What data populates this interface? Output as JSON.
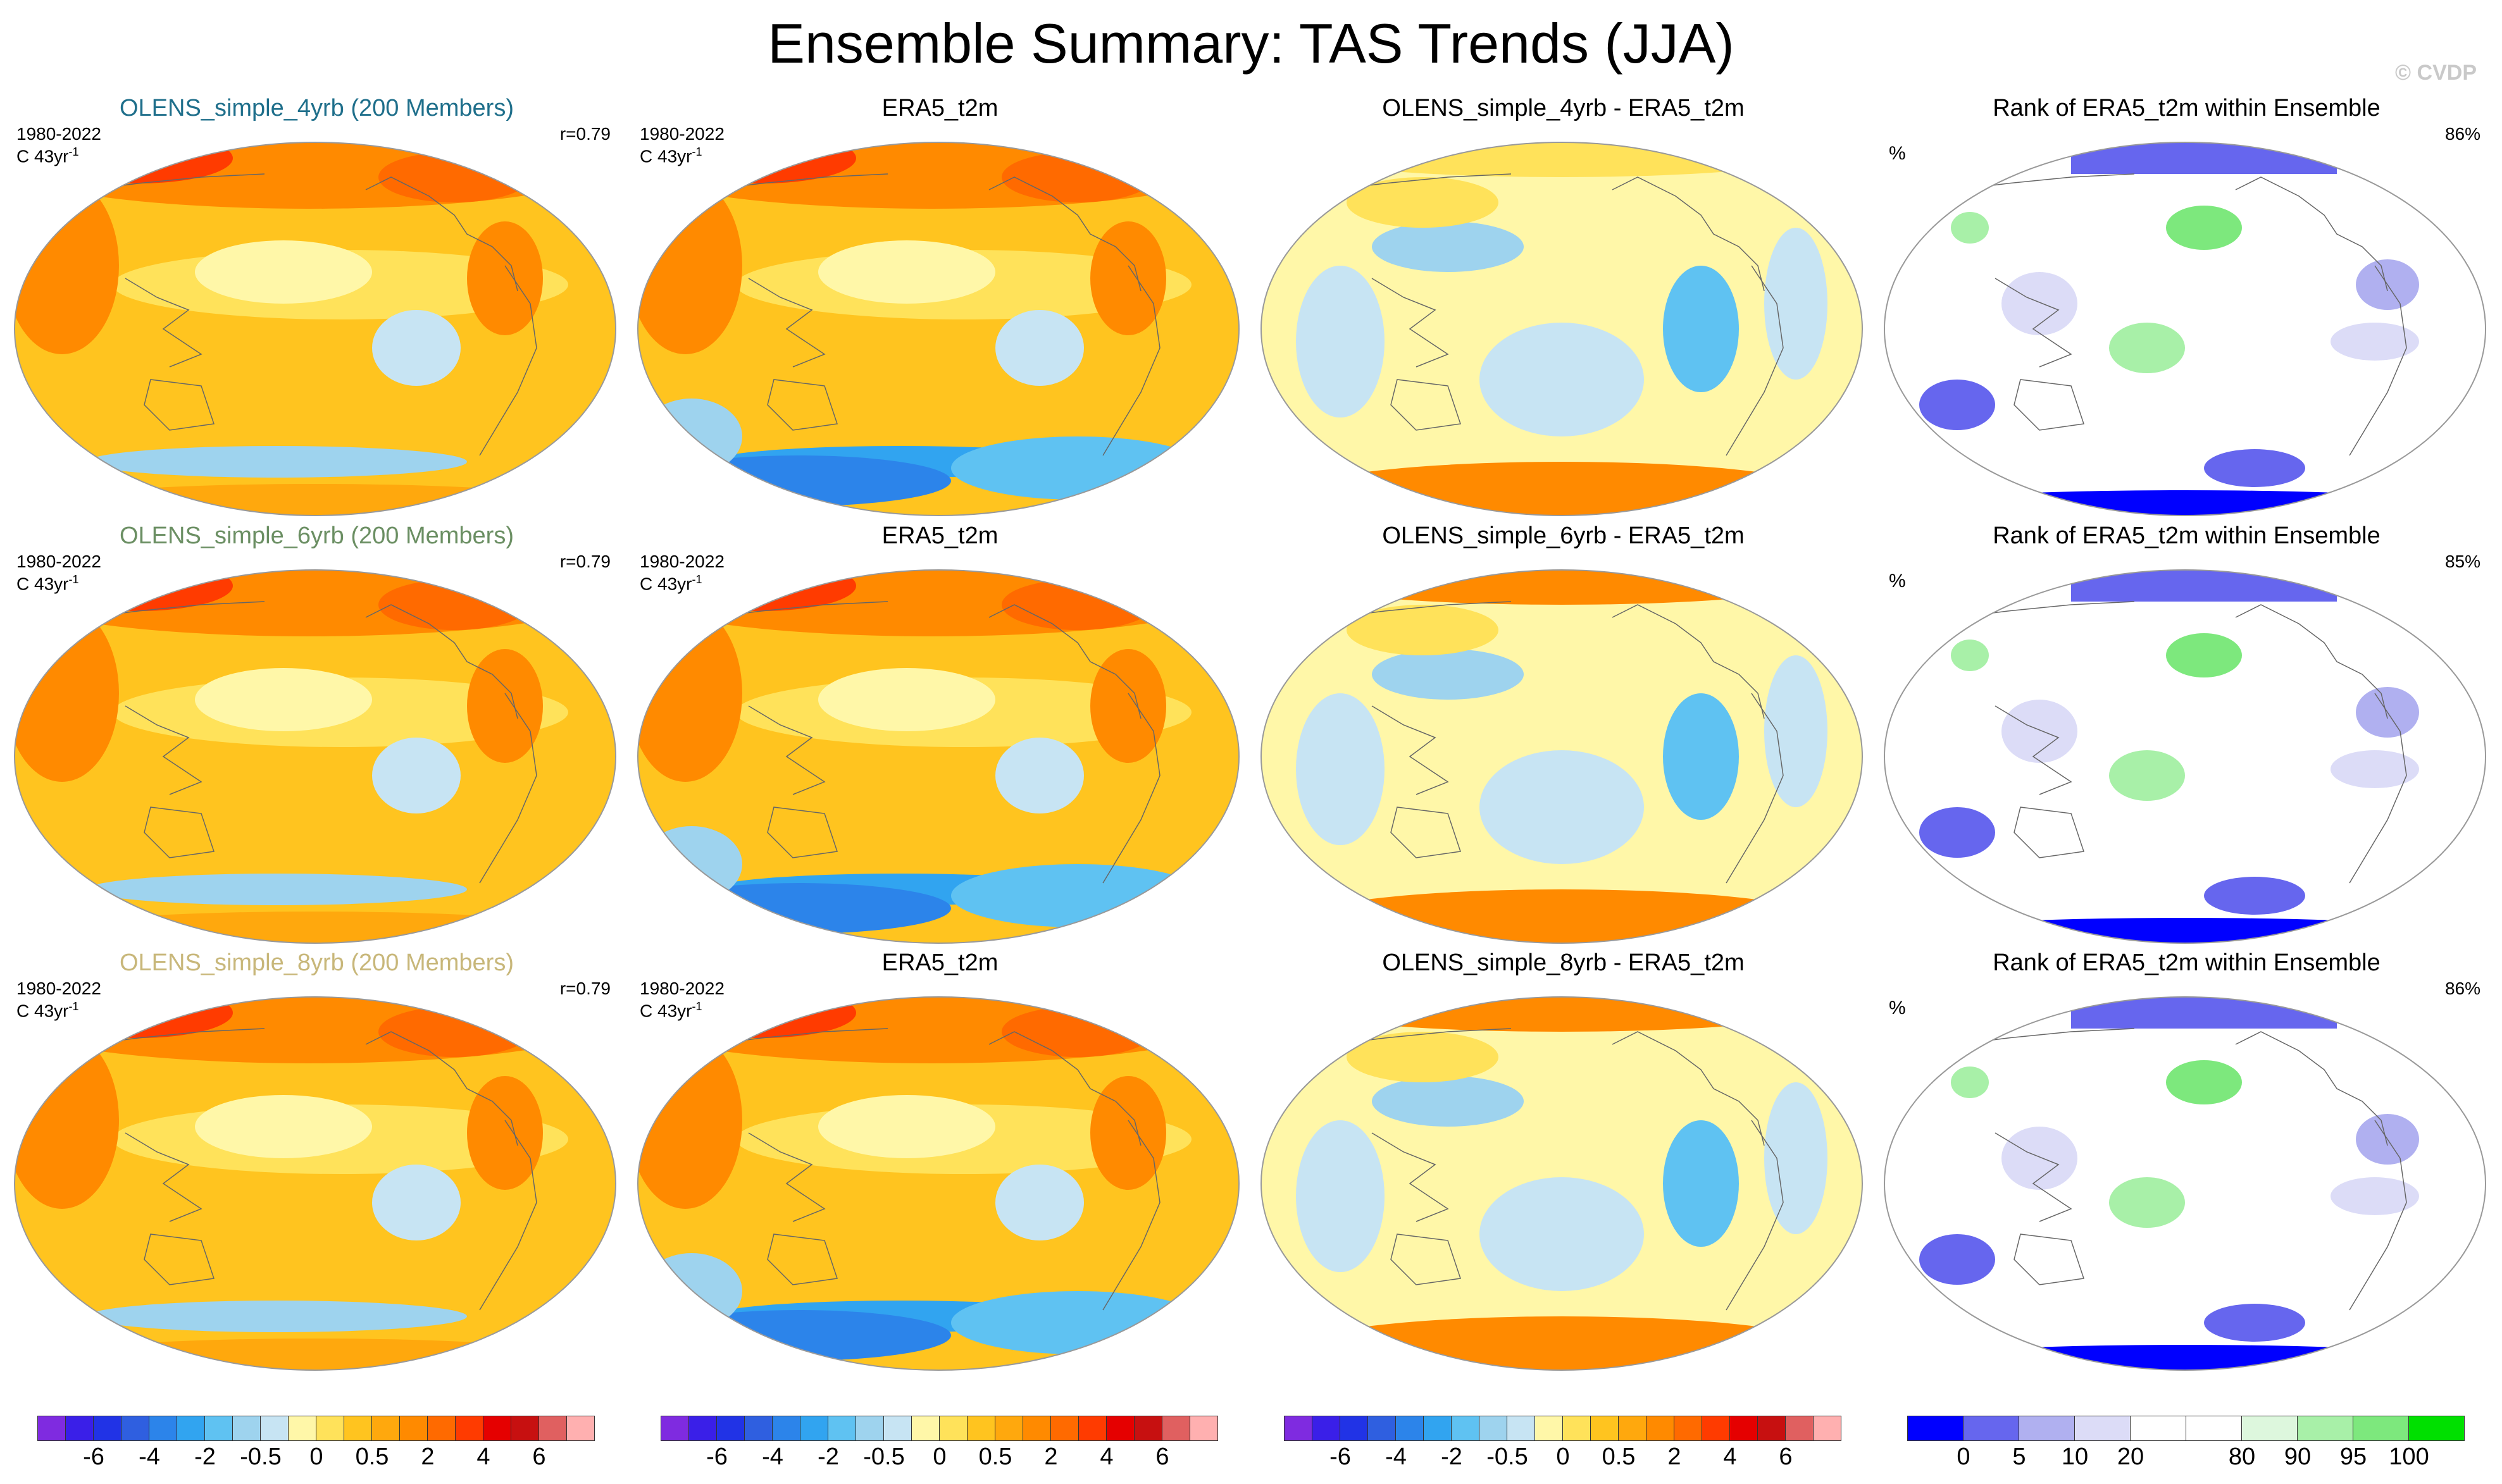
{
  "title": "Ensemble Summary: TAS Trends (JJA)",
  "watermark": "© CVDP",
  "rows": [
    {
      "ensemble": {
        "title": "OLENS_simple_4yrb (200 Members)",
        "title_color": "#1f6f8b",
        "period": "1980-2022",
        "units": "C 43yr",
        "units_sup": "-1",
        "corr": "r=0.79"
      },
      "obs": {
        "title": "ERA5_t2m",
        "period": "1980-2022",
        "units": "C 43yr",
        "units_sup": "-1"
      },
      "diff": {
        "title": "OLENS_simple_4yrb - ERA5_t2m"
      },
      "rank": {
        "title": "Rank of ERA5_t2m within Ensemble",
        "unit": "%",
        "score": "86%"
      }
    },
    {
      "ensemble": {
        "title": "OLENS_simple_6yrb (200 Members)",
        "title_color": "#6b8f63",
        "period": "1980-2022",
        "units": "C 43yr",
        "units_sup": "-1",
        "corr": "r=0.79"
      },
      "obs": {
        "title": "ERA5_t2m",
        "period": "1980-2022",
        "units": "C 43yr",
        "units_sup": "-1"
      },
      "diff": {
        "title": "OLENS_simple_6yrb - ERA5_t2m"
      },
      "rank": {
        "title": "Rank of ERA5_t2m within Ensemble",
        "unit": "%",
        "score": "85%"
      }
    },
    {
      "ensemble": {
        "title": "OLENS_simple_8yrb (200 Members)",
        "title_color": "#c8b77a",
        "period": "1980-2022",
        "units": "C 43yr",
        "units_sup": "-1",
        "corr": "r=0.79"
      },
      "obs": {
        "title": "ERA5_t2m",
        "period": "1980-2022",
        "units": "C 43yr",
        "units_sup": "-1"
      },
      "diff": {
        "title": "OLENS_simple_8yrb - ERA5_t2m"
      },
      "rank": {
        "title": "Rank of ERA5_t2m within Ensemble",
        "unit": "%",
        "score": "86%"
      }
    }
  ],
  "chart_data": {
    "type": "heatmap",
    "title": "Ensemble Summary: TAS Trends (JJA)",
    "projection": "global map (Winkel-tripel style ellipse)",
    "colorbars": [
      {
        "name": "trend",
        "colors": [
          "#7f2be0",
          "#3a1fe8",
          "#2133e6",
          "#2f5fe0",
          "#2c84ea",
          "#31a4f0",
          "#5fc2f2",
          "#9ed3ee",
          "#c7e4f3",
          "#fff7a8",
          "#ffe25a",
          "#ffc41f",
          "#ffa80d",
          "#ff8a00",
          "#ff6a00",
          "#ff3b00",
          "#e50000",
          "#c71010",
          "#e06060",
          "#ffb0b0"
        ],
        "ticks": [
          "-6",
          "-4",
          "-2",
          "-0.5",
          "0",
          "0.5",
          "2",
          "4",
          "6"
        ],
        "tick_boundaries": [
          2,
          4,
          6,
          8,
          10,
          12,
          14,
          16,
          18
        ]
      },
      {
        "name": "rank",
        "colors": [
          "#0000ff",
          "#6666ee",
          "#b0b0f0",
          "#dcdcf7",
          "#ffffff",
          "#ffffff",
          "#ddf7dd",
          "#a8f0a8",
          "#7de87d",
          "#00e000"
        ],
        "ticks": [
          "0",
          "5",
          "10",
          "20",
          "80",
          "90",
          "95",
          "100"
        ],
        "tick_boundaries": [
          1,
          2,
          3,
          4,
          6,
          7,
          8,
          9
        ]
      }
    ],
    "panel_fields": {
      "ensemble": {
        "global_mean_trend": 1.2,
        "southern_ocean": -0.3,
        "arctic": 3.5
      },
      "obs": {
        "global_mean_trend": 1.0,
        "southern_ocean": -1.6,
        "arctic": 2.5
      },
      "diff": {
        "global_mean_trend": 0.2,
        "southern_ocean": 1.4,
        "arctic": 1.0
      },
      "rank": {
        "arctic_ocean": 0,
        "north_pacific": 95
      }
    }
  }
}
